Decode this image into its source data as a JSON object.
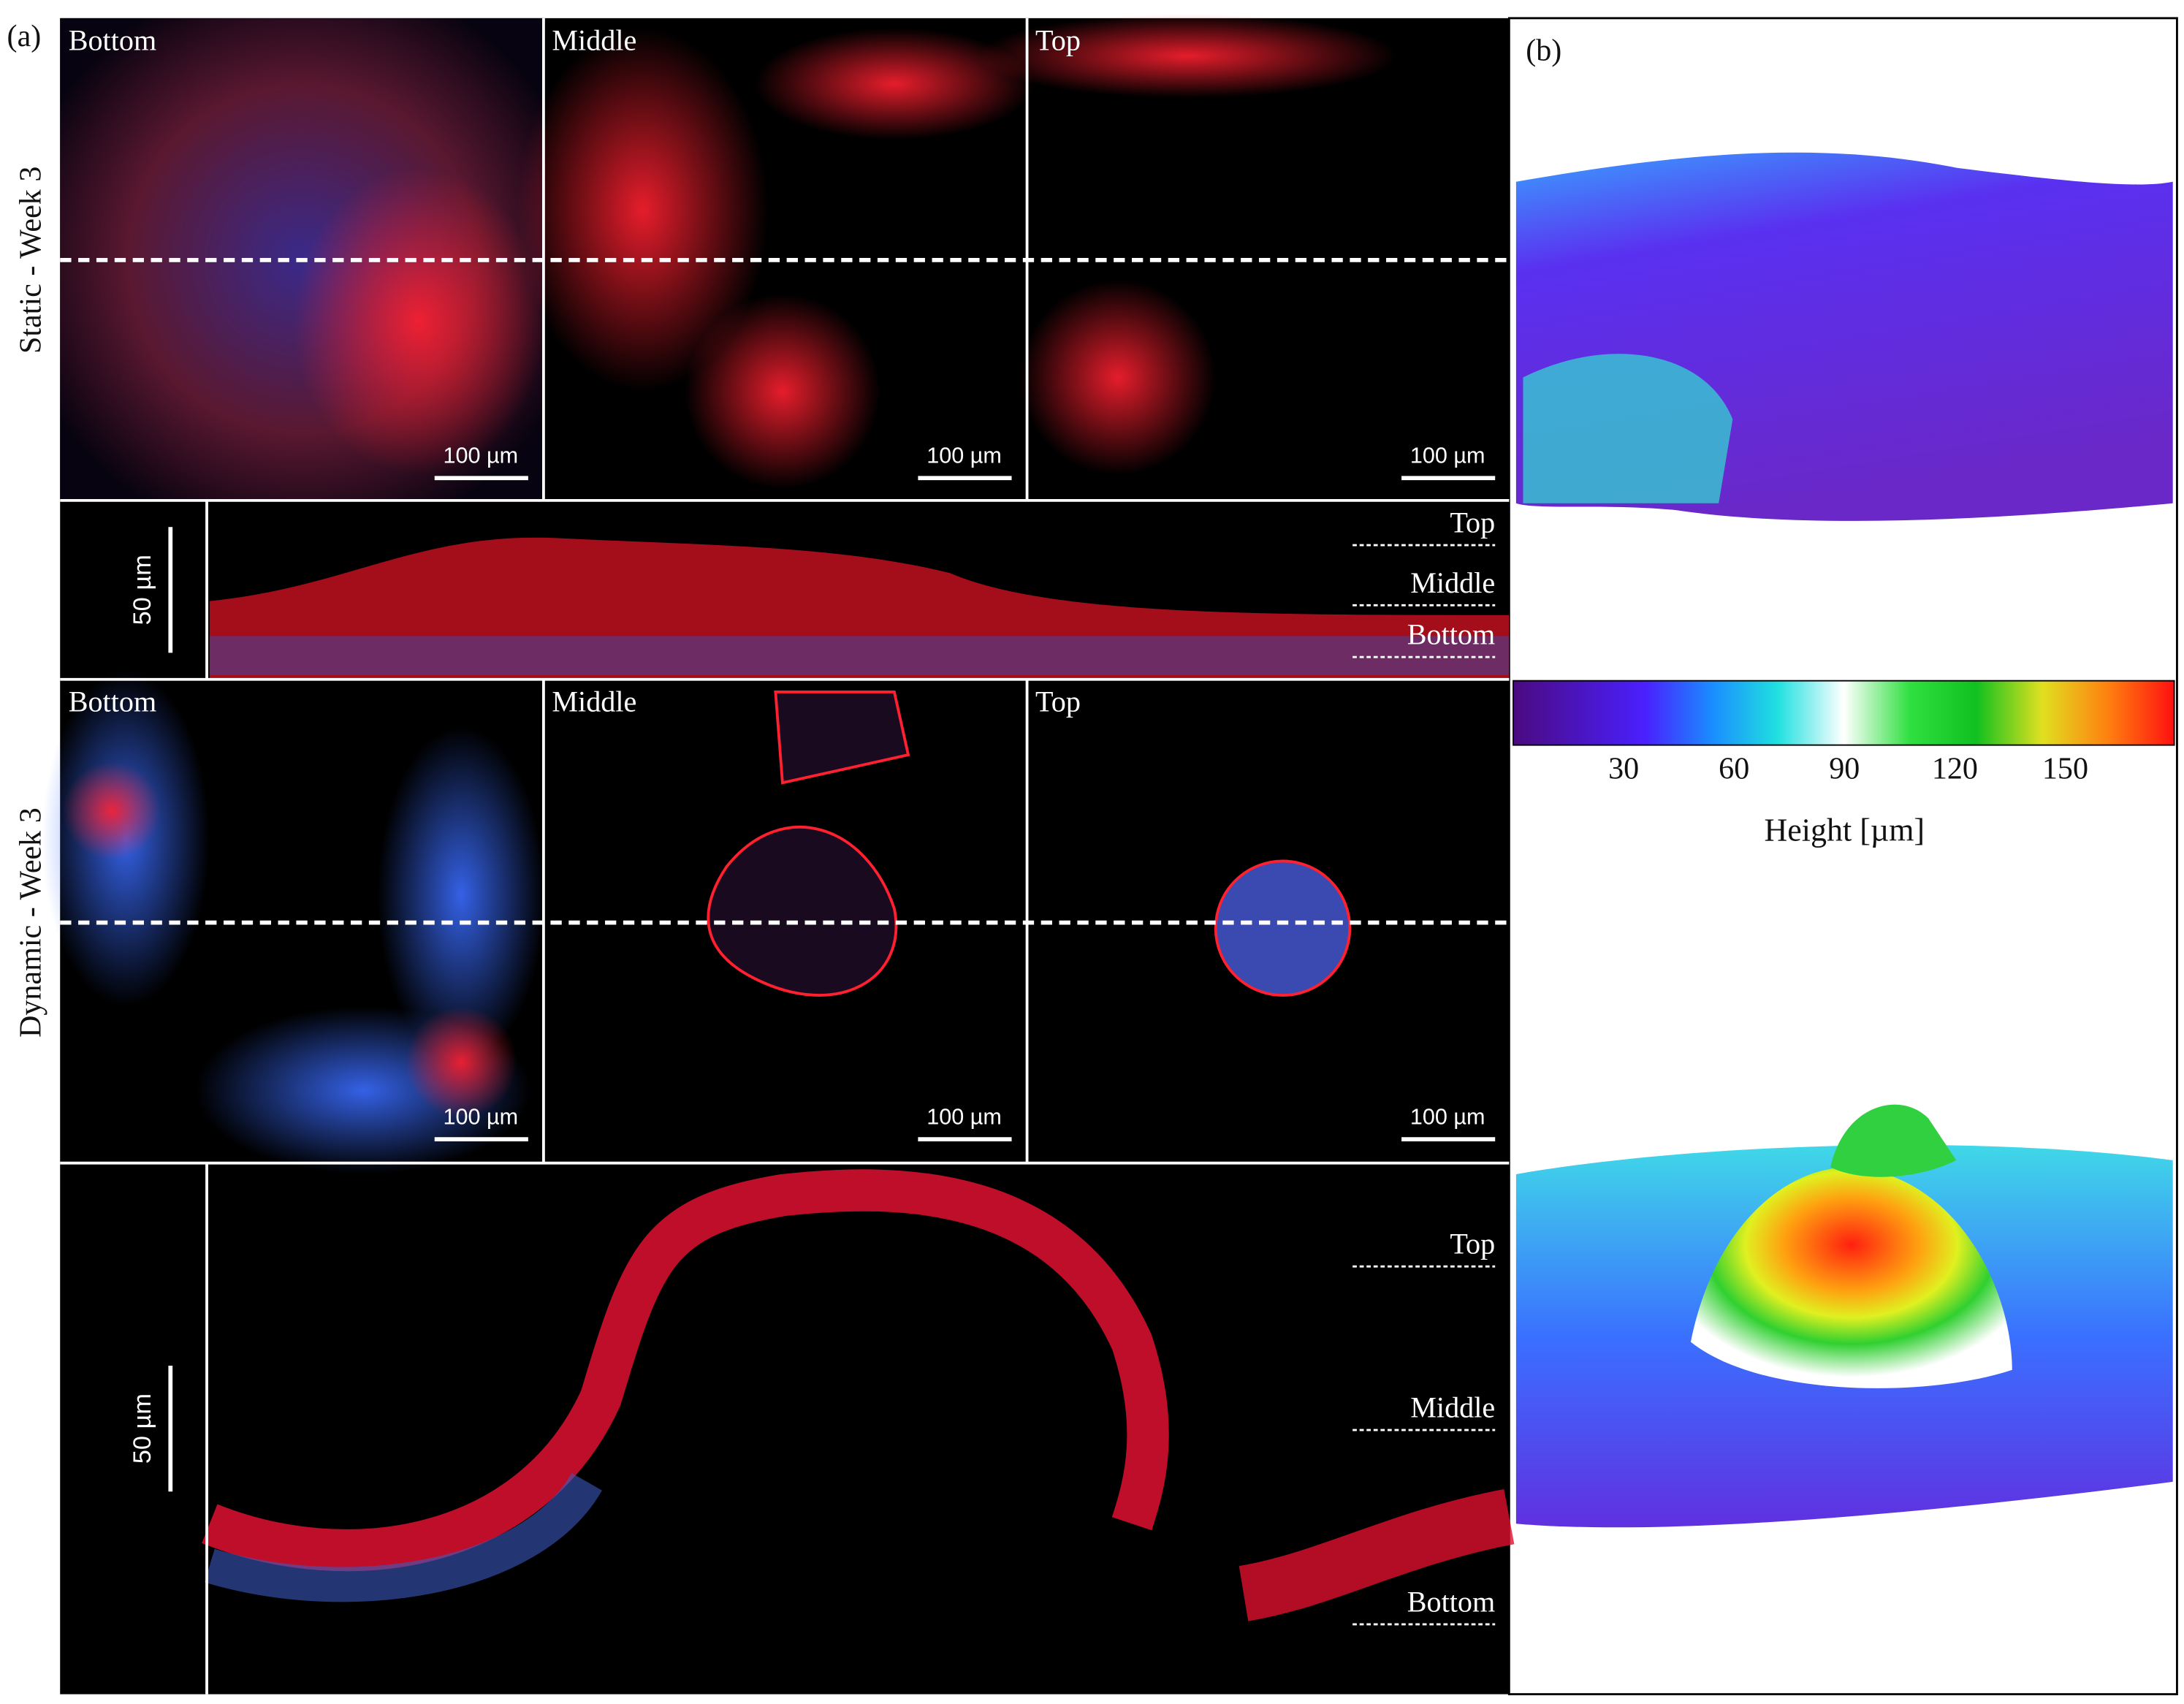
{
  "labels": {
    "a": "(a)",
    "b": "(b)"
  },
  "rows": [
    {
      "label": "Static - Week 3",
      "panels": [
        "Bottom",
        "Middle",
        "Top"
      ],
      "scale_bar": "100 µm",
      "section_scale": "50 µm",
      "section_levels": [
        "Top",
        "Middle",
        "Bottom"
      ]
    },
    {
      "label": "Dynamic - Week 3",
      "panels": [
        "Bottom",
        "Middle",
        "Top"
      ],
      "scale_bar": "100 µm",
      "section_scale": "50 µm",
      "section_levels": [
        "Top",
        "Middle",
        "Bottom"
      ]
    }
  ],
  "colorbar": {
    "ticks": [
      30,
      60,
      90,
      120,
      150
    ],
    "label": "Height [µm]"
  }
}
